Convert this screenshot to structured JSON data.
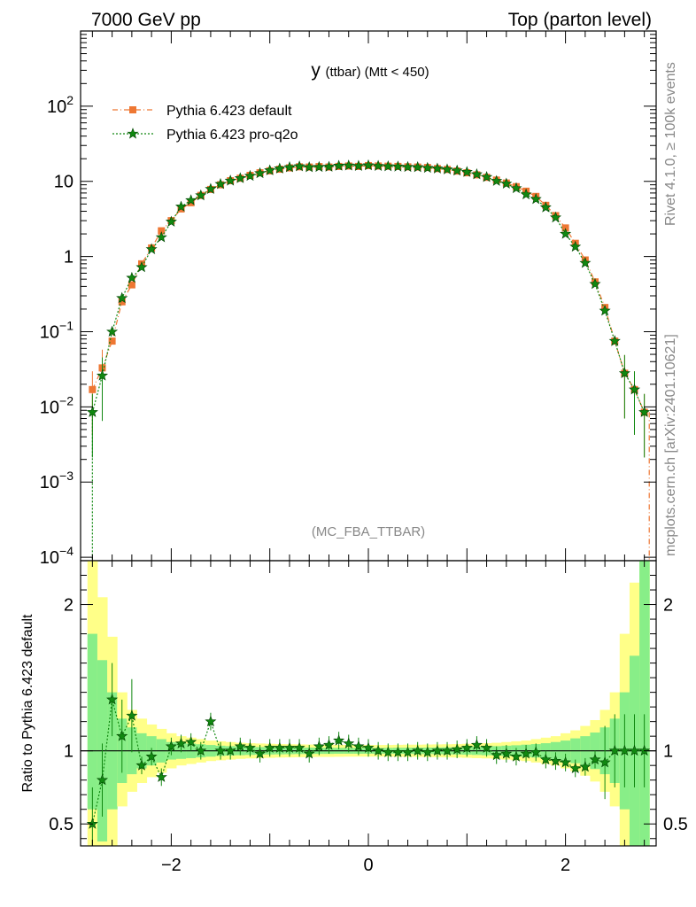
{
  "header": {
    "left": "7000 GeV pp",
    "right": "Top (parton level)"
  },
  "side_labels": {
    "rivet": "Rivet 4.1.0, ≥ 100k events",
    "mcplots": "mcplots.cern.ch [arXiv:2401.10621]"
  },
  "colors": {
    "default": "#ee7733",
    "proq2o": "#118811",
    "band_inner": "#88ee88",
    "band_outer": "#ffff88"
  },
  "chart_data": [
    {
      "type": "line",
      "title": "y (ttbar) (Mtt < 450)",
      "title_main": "y",
      "title_sub": "(ttbar) (Mtt < 450)",
      "watermark": "(MC_FBA_TTBAR)",
      "yscale": "log",
      "xlim": [
        -2.92,
        2.92
      ],
      "ylim": [
        9e-05,
        1000
      ],
      "ytick_labels": [
        {
          "value": 0.0001,
          "base": "10",
          "exp": "−4"
        },
        {
          "value": 0.001,
          "base": "10",
          "exp": "−3"
        },
        {
          "value": 0.01,
          "base": "10",
          "exp": "−2"
        },
        {
          "value": 0.1,
          "base": "10",
          "exp": "−1"
        },
        {
          "value": 1,
          "base": "1",
          "exp": ""
        },
        {
          "value": 10,
          "base": "10",
          "exp": ""
        },
        {
          "value": 100,
          "base": "10",
          "exp": "2"
        }
      ],
      "legend_position": "top-left",
      "series": [
        {
          "name": "Pythia 6.423 default",
          "x": [
            -2.8,
            -2.7,
            -2.6,
            -2.5,
            -2.4,
            -2.3,
            -2.2,
            -2.1,
            -2.0,
            -1.9,
            -1.8,
            -1.7,
            -1.6,
            -1.5,
            -1.4,
            -1.3,
            -1.2,
            -1.1,
            -1.0,
            -0.9,
            -0.8,
            -0.7,
            -0.6,
            -0.5,
            -0.4,
            -0.3,
            -0.2,
            -0.1,
            0.0,
            0.1,
            0.2,
            0.3,
            0.4,
            0.5,
            0.6,
            0.7,
            0.8,
            0.9,
            1.0,
            1.1,
            1.2,
            1.3,
            1.4,
            1.5,
            1.6,
            1.7,
            1.8,
            1.9,
            2.0,
            2.1,
            2.2,
            2.3,
            2.4,
            2.5,
            2.6,
            2.7,
            2.8
          ],
          "values": [
            0.017,
            0.033,
            0.075,
            0.25,
            0.42,
            0.8,
            1.3,
            2.2,
            3.0,
            4.3,
            5.2,
            6.5,
            7.8,
            9.0,
            10.2,
            11.0,
            12.0,
            13.0,
            13.8,
            14.5,
            15.1,
            15.6,
            15.5,
            15.7,
            15.5,
            15.8,
            16.0,
            15.8,
            16.2,
            16.0,
            15.9,
            15.8,
            15.6,
            15.5,
            15.3,
            14.8,
            14.4,
            13.7,
            13.0,
            12.2,
            11.3,
            10.4,
            9.5,
            8.5,
            7.4,
            6.3,
            4.8,
            3.5,
            2.4,
            1.5,
            0.9,
            0.46,
            0.21,
            0.075,
            0.028,
            0.017,
            0.0085
          ]
        },
        {
          "name": "Pythia 6.423 pro-q2o",
          "x": [
            -2.8,
            -2.7,
            -2.6,
            -2.5,
            -2.4,
            -2.3,
            -2.2,
            -2.1,
            -2.0,
            -1.9,
            -1.8,
            -1.7,
            -1.6,
            -1.5,
            -1.4,
            -1.3,
            -1.2,
            -1.1,
            -1.0,
            -0.9,
            -0.8,
            -0.7,
            -0.6,
            -0.5,
            -0.4,
            -0.3,
            -0.2,
            -0.1,
            0.0,
            0.1,
            0.2,
            0.3,
            0.4,
            0.5,
            0.6,
            0.7,
            0.8,
            0.9,
            1.0,
            1.1,
            1.2,
            1.3,
            1.4,
            1.5,
            1.6,
            1.7,
            1.8,
            1.9,
            2.0,
            2.1,
            2.2,
            2.3,
            2.4,
            2.5,
            2.6,
            2.7,
            2.8
          ],
          "values": [
            0.0085,
            0.026,
            0.1,
            0.28,
            0.52,
            0.72,
            1.25,
            1.8,
            2.9,
            4.6,
            5.6,
            6.5,
            7.9,
            9.2,
            10.2,
            11.0,
            11.8,
            12.8,
            14.0,
            14.8,
            15.4,
            15.8,
            15.4,
            15.5,
            15.6,
            16.1,
            16.2,
            16.0,
            16.3,
            16.0,
            15.8,
            15.7,
            15.5,
            15.4,
            15.1,
            14.8,
            14.4,
            13.9,
            13.3,
            12.4,
            11.4,
            10.1,
            9.3,
            8.1,
            6.7,
            5.8,
            4.5,
            3.3,
            2.0,
            1.35,
            0.82,
            0.43,
            0.19,
            0.075,
            0.028,
            0.017,
            0.0085
          ]
        }
      ]
    },
    {
      "type": "line",
      "ylabel": "Ratio to Pythia 6.423 default",
      "xlim": [
        -2.92,
        2.92
      ],
      "ylim": [
        0.35,
        2.3
      ],
      "xticks": [
        -2,
        0,
        2
      ],
      "xtick_labels": [
        "−2",
        "0",
        "2"
      ],
      "yticks": [
        0.5,
        1,
        2
      ],
      "ytick_labels": [
        "0.5",
        "1",
        "2"
      ],
      "bins": [
        -2.85,
        -2.75,
        -2.65,
        -2.55,
        -2.45,
        -2.35,
        -2.25,
        -2.15,
        -2.05,
        -1.95,
        -1.85,
        -1.75,
        -1.65,
        -1.55,
        -1.45,
        -1.35,
        -1.25,
        -1.15,
        -1.05,
        -0.95,
        -0.85,
        -0.75,
        -0.65,
        -0.55,
        -0.45,
        -0.35,
        -0.25,
        -0.15,
        -0.05,
        0.05,
        0.15,
        0.25,
        0.35,
        0.45,
        0.55,
        0.65,
        0.75,
        0.85,
        0.95,
        1.05,
        1.15,
        1.25,
        1.35,
        1.45,
        1.55,
        1.65,
        1.75,
        1.85,
        1.95,
        2.05,
        2.15,
        2.25,
        2.35,
        2.45,
        2.55,
        2.65,
        2.75,
        2.85
      ],
      "band_inner": [
        0.6,
        0.38,
        0.6,
        0.78,
        0.84,
        0.88,
        0.9,
        0.92,
        0.94,
        0.945,
        0.95,
        0.955,
        0.96,
        0.965,
        0.968,
        0.97,
        0.972,
        0.974,
        0.975,
        0.976,
        0.977,
        0.978,
        0.978,
        0.979,
        0.979,
        0.98,
        0.98,
        0.98,
        0.98,
        0.98,
        0.98,
        0.979,
        0.979,
        0.978,
        0.978,
        0.977,
        0.976,
        0.975,
        0.974,
        0.972,
        0.97,
        0.968,
        0.965,
        0.962,
        0.958,
        0.954,
        0.948,
        0.94,
        0.93,
        0.915,
        0.9,
        0.875,
        0.84,
        0.78,
        0.6,
        0.35,
        0.35
      ],
      "band_inner_hi": [
        1.8,
        1.62,
        1.4,
        1.22,
        1.16,
        1.12,
        1.1,
        1.08,
        1.06,
        1.055,
        1.05,
        1.045,
        1.04,
        1.035,
        1.032,
        1.03,
        1.028,
        1.026,
        1.025,
        1.024,
        1.023,
        1.022,
        1.022,
        1.021,
        1.021,
        1.02,
        1.02,
        1.02,
        1.02,
        1.02,
        1.02,
        1.021,
        1.021,
        1.022,
        1.022,
        1.023,
        1.024,
        1.025,
        1.026,
        1.028,
        1.03,
        1.032,
        1.035,
        1.038,
        1.042,
        1.046,
        1.052,
        1.06,
        1.07,
        1.085,
        1.1,
        1.125,
        1.16,
        1.22,
        1.4,
        1.65,
        2.3
      ],
      "band_outer": [
        0.35,
        0.35,
        0.35,
        0.62,
        0.72,
        0.78,
        0.82,
        0.85,
        0.88,
        0.9,
        0.91,
        0.92,
        0.93,
        0.935,
        0.94,
        0.945,
        0.948,
        0.95,
        0.952,
        0.954,
        0.955,
        0.956,
        0.957,
        0.958,
        0.958,
        0.959,
        0.96,
        0.96,
        0.96,
        0.96,
        0.96,
        0.959,
        0.958,
        0.958,
        0.957,
        0.956,
        0.955,
        0.954,
        0.952,
        0.95,
        0.948,
        0.945,
        0.94,
        0.935,
        0.93,
        0.92,
        0.91,
        0.9,
        0.88,
        0.86,
        0.83,
        0.79,
        0.72,
        0.62,
        0.35,
        0.35,
        0.35
      ],
      "band_outer_hi": [
        2.3,
        2.05,
        1.78,
        1.4,
        1.28,
        1.22,
        1.18,
        1.15,
        1.12,
        1.1,
        1.09,
        1.08,
        1.07,
        1.065,
        1.06,
        1.055,
        1.052,
        1.05,
        1.048,
        1.046,
        1.045,
        1.044,
        1.043,
        1.042,
        1.042,
        1.041,
        1.04,
        1.04,
        1.04,
        1.04,
        1.04,
        1.041,
        1.042,
        1.042,
        1.043,
        1.044,
        1.045,
        1.046,
        1.048,
        1.05,
        1.052,
        1.055,
        1.06,
        1.065,
        1.07,
        1.08,
        1.09,
        1.1,
        1.12,
        1.14,
        1.17,
        1.21,
        1.28,
        1.4,
        1.8,
        2.15,
        2.3
      ],
      "series": [
        {
          "name": "Pythia 6.423 pro-q2o",
          "x": [
            -2.8,
            -2.7,
            -2.6,
            -2.5,
            -2.4,
            -2.3,
            -2.2,
            -2.1,
            -2.0,
            -1.9,
            -1.8,
            -1.7,
            -1.6,
            -1.5,
            -1.4,
            -1.3,
            -1.2,
            -1.1,
            -1.0,
            -0.9,
            -0.8,
            -0.7,
            -0.6,
            -0.5,
            -0.4,
            -0.3,
            -0.2,
            -0.1,
            0.0,
            0.1,
            0.2,
            0.3,
            0.4,
            0.5,
            0.6,
            0.7,
            0.8,
            0.9,
            1.0,
            1.1,
            1.2,
            1.3,
            1.4,
            1.5,
            1.6,
            1.7,
            1.8,
            1.9,
            2.0,
            2.1,
            2.2,
            2.3,
            2.4,
            2.5,
            2.6,
            2.7,
            2.8
          ],
          "values": [
            0.5,
            0.8,
            1.35,
            1.1,
            1.24,
            0.9,
            0.96,
            0.82,
            1.03,
            1.05,
            1.06,
            1.0,
            1.2,
            1.0,
            1.0,
            1.03,
            1.02,
            0.98,
            1.02,
            1.02,
            1.02,
            1.02,
            0.98,
            1.03,
            1.04,
            1.07,
            1.05,
            1.03,
            1.02,
            1.0,
            0.99,
            0.99,
            0.99,
            1.0,
            0.99,
            1.0,
            1.0,
            1.01,
            1.02,
            1.04,
            1.02,
            0.97,
            0.98,
            0.96,
            0.98,
            0.99,
            0.94,
            0.93,
            0.92,
            0.88,
            0.89,
            0.94,
            0.92,
            1.0,
            1.0,
            1.0,
            1.0
          ]
        }
      ]
    }
  ]
}
